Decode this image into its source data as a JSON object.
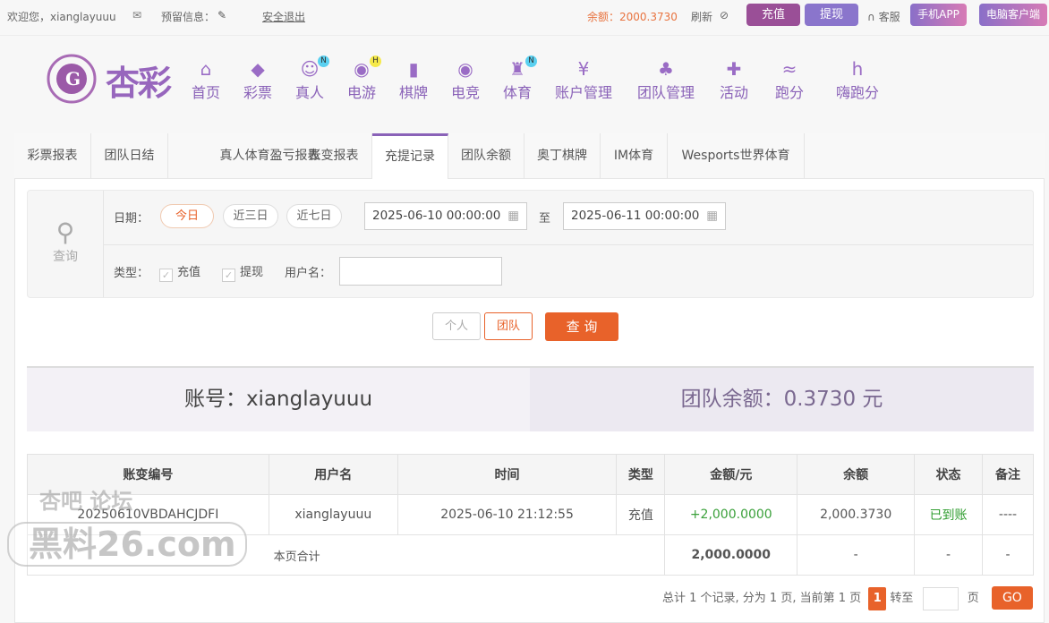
{
  "topbar": {
    "welcome": "欢迎您，xianglayuuu",
    "reserved_info": "预留信息：",
    "logout": "安全退出",
    "balance": "余额：2000.3730",
    "refresh": "刷新",
    "recharge": "充值",
    "withdraw": "提现",
    "service": "客服",
    "mobile_app": "手机APP",
    "pc_client": "电脑客户端"
  },
  "logo": {
    "text": "杏彩"
  },
  "nav": [
    {
      "label": "首页",
      "icon": "home-icon"
    },
    {
      "label": "彩票",
      "icon": "ticket-icon"
    },
    {
      "label": "真人",
      "icon": "dealer-icon",
      "badge": "N"
    },
    {
      "label": "电游",
      "icon": "gamepad-icon",
      "badge": "H"
    },
    {
      "label": "棋牌",
      "icon": "cards-icon"
    },
    {
      "label": "电竞",
      "icon": "gamepad-icon"
    },
    {
      "label": "体育",
      "icon": "trophy-icon",
      "badge": "N"
    },
    {
      "label": "账户管理",
      "icon": "yen-icon"
    },
    {
      "label": "团队管理",
      "icon": "team-icon"
    },
    {
      "label": "活动",
      "icon": "gift-icon"
    },
    {
      "label": "跑分",
      "icon": "rhino-icon"
    },
    {
      "label": "嗨跑分",
      "icon": "hi-icon"
    }
  ],
  "tabs": [
    "彩票报表",
    "团队日结",
    "真人体育盈亏报表",
    "账变报表",
    "充提记录",
    "团队余额",
    "奥丁棋牌",
    "IM体育",
    "Wesports世界体育"
  ],
  "active_tab": 4,
  "filter": {
    "query": "查询",
    "date_label": "日期：",
    "today": "今日",
    "three_days": "近三日",
    "seven_days": "近七日",
    "start": "2025-06-10 00:00:00",
    "to": "至",
    "end": "2025-06-11 00:00:00",
    "type_label": "类型：",
    "type_recharge": "充值",
    "type_withdraw": "提现",
    "username_label": "用户名：",
    "username": ""
  },
  "actions": {
    "personal": "个人",
    "team": "团队",
    "search": "查 询"
  },
  "summary": {
    "account": "账号：xianglayuuu",
    "team_balance": "团队余额：0.3730 元"
  },
  "table": {
    "headers": [
      "账变编号",
      "用户名",
      "时间",
      "类型",
      "金额/元",
      "余额",
      "状态",
      "备注"
    ],
    "rows": [
      [
        "20250610VBDAHCJDFI",
        "xianglayuuu",
        "2025-06-10 21:12:55",
        "充值",
        "+2,000.0000",
        "2,000.3730",
        "已到账",
        "----"
      ]
    ],
    "total": {
      "label": "本页合计",
      "amount": "2,000.0000",
      "balance": "-",
      "status": "-",
      "note": "-"
    }
  },
  "pagination": {
    "summary": "总计 1 个记录, 分为 1 页, 当前第 1 页",
    "current": "1",
    "goto": "转至",
    "page": "页",
    "go": "GO"
  },
  "watermark": {
    "line1": "杏吧 论坛",
    "line2": "黑料26.com"
  },
  "colors": {
    "brand": "#8a62b8",
    "accent": "#e8622a",
    "success": "#2e9c2e",
    "amount": "#3aa03a"
  }
}
